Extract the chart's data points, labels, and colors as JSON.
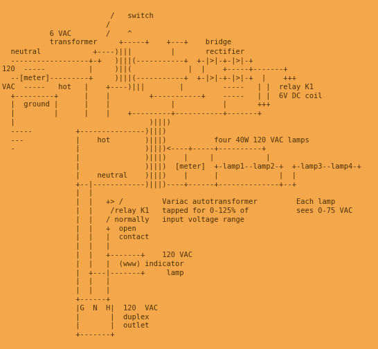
{
  "background_color": "#F5A84B",
  "text_color": "#4A3000",
  "font_size": 7.5,
  "diagram": [
    "                         /   switch                                             ",
    "                        /                                                       ",
    "           6 VAC        /    ^                                                  ",
    "           transformer     +-----+    +---+    bridge                          ",
    "  neutral            +----)|||         |       rectifier                       ",
    "  ------------------+-+   )|||(-----------+  +-|>|-+-|>|-+                    ",
    "120  -----          |     )||(             |  |    +-----+-------+             ",
    "  --[meter]---------+     )|||(-----------+  +-|>|-+-|>|-+  |    +++          ",
    "VAC  -----   hot   |    +----)|||        |         -----   | |  relay K1      ",
    "  +---------+      |    |         +-----------+    -----   | |  6V DC coil    ",
    "  |  ground |      |    |              |           |       +++                 ",
    "  |         |      |    |    +---------+-----------+-------+                  ",
    "  |                               )|||)                                        ",
    "  -----          +---------------)|||)                                         ",
    "  ---            |    hot        )|||)           four 40W 120 VAC lamps        ",
    "  -              |               )|||)<----+-----+----------+                  ",
    "                 |               )|||)    |     |            |                 ",
    "                 |               )|||)  [meter]  +-lamp1--lamp2-+  +-lamp3--lamp4-+",
    "                 |    neutral    )|||)    |      |              |  |            ",
    "                 +--|------------)|||)----+------+--------------+--+            ",
    "                 |  |                                                           ",
    "                 |  |   +> /         Variac autotransformer         Each lamp  ",
    "                 |  |    /relay K1   tapped for 0-125% of           sees 0-75 VAC",
    "                 |  |   / normally   input voltage range                       ",
    "                 |  |   +  open                                                ",
    "                 |  |   |  contact                                             ",
    "                 |  |   |                                                      ",
    "                 |  |   +-------+    120 VAC                                  ",
    "                 |  |   |  (www) indicator                                    ",
    "                 |  +---|-------+     lamp                                     ",
    "                 |  |   |                                                      ",
    "                 |  |   |                                                      ",
    "                 +------+                                                      ",
    "                 |G  N  H|  120  VAC                                           ",
    "                 |       |  duplex                                             ",
    "                 |       |  outlet                                             ",
    "                 +-------+                                                     "
  ]
}
